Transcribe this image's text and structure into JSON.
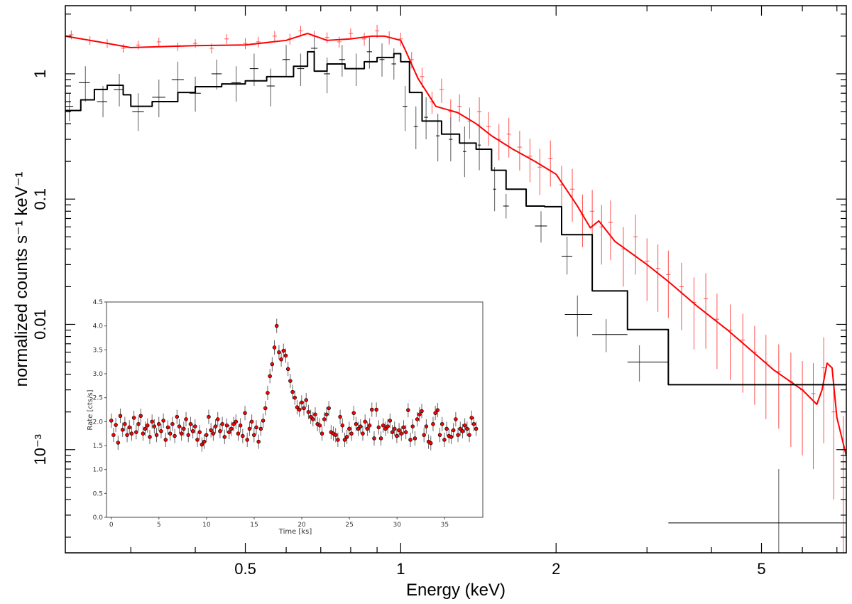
{
  "chart_data": [
    {
      "type": "line",
      "title": "",
      "xlabel": "Energy (keV)",
      "ylabel": "normalized counts s⁻¹ keV⁻¹",
      "xscale": "log",
      "yscale": "log",
      "xlim": [
        0.224,
        7.3
      ],
      "ylim": [
        0.00015,
        3.5
      ],
      "xticks": [
        {
          "v": 0.5,
          "label": "0.5"
        },
        {
          "v": 1,
          "label": "1"
        },
        {
          "v": 2,
          "label": "2"
        },
        {
          "v": 5,
          "label": "5"
        }
      ],
      "yticks": [
        {
          "v": 1,
          "label": "1"
        },
        {
          "v": 0.1,
          "label": "0.1"
        },
        {
          "v": 0.01,
          "label": "0.01"
        },
        {
          "v": 0.001,
          "label": "10⁻³"
        }
      ],
      "colors": {
        "red": "#ff0000",
        "black": "#000000",
        "black_err": "#777777",
        "red_err": "#ff5050"
      },
      "series": [
        {
          "name": "red model",
          "color": "red",
          "style": "smooth",
          "x": [
            0.224,
            0.26,
            0.3,
            0.4,
            0.5,
            0.6,
            0.66,
            0.72,
            0.8,
            0.88,
            0.93,
            1.0,
            1.02,
            1.08,
            1.17,
            1.29,
            1.4,
            1.5,
            1.65,
            1.82,
            2.0,
            2.2,
            2.33,
            2.42,
            2.6,
            3.0,
            3.3,
            3.75,
            4.3,
            5.29,
            6.0,
            6.4,
            6.55,
            6.7,
            6.85,
            7.0,
            7.3
          ],
          "y": [
            2.0,
            1.8,
            1.62,
            1.68,
            1.7,
            1.85,
            2.1,
            1.85,
            1.9,
            2.0,
            2.0,
            1.85,
            1.56,
            0.92,
            0.55,
            0.49,
            0.4,
            0.32,
            0.25,
            0.2,
            0.158,
            0.088,
            0.059,
            0.067,
            0.046,
            0.03,
            0.022,
            0.014,
            0.009,
            0.0043,
            0.003,
            0.0023,
            0.003,
            0.0049,
            0.0045,
            0.0018,
            0.00089
          ]
        },
        {
          "name": "black model",
          "color": "black",
          "style": "step",
          "x": [
            0.224,
            0.24,
            0.255,
            0.27,
            0.29,
            0.3,
            0.33,
            0.37,
            0.4,
            0.45,
            0.5,
            0.55,
            0.62,
            0.66,
            0.68,
            0.72,
            0.78,
            0.85,
            0.9,
            0.97,
            1.0,
            1.04,
            1.1,
            1.2,
            1.3,
            1.4,
            1.5,
            1.6,
            1.75,
            1.9,
            2.05,
            2.35,
            2.75,
            3.3,
            7.3
          ],
          "y": [
            0.51,
            0.62,
            0.75,
            0.81,
            0.68,
            0.55,
            0.6,
            0.71,
            0.79,
            0.83,
            0.88,
            0.95,
            1.15,
            1.5,
            1.05,
            1.2,
            1.1,
            1.25,
            1.35,
            1.45,
            1.25,
            0.71,
            0.42,
            0.33,
            0.28,
            0.25,
            0.17,
            0.12,
            0.088,
            0.087,
            0.052,
            0.0185,
            0.0091,
            0.0033,
            0.00031
          ]
        }
      ],
      "red_data": {
        "x": [
          0.23,
          0.25,
          0.27,
          0.29,
          0.31,
          0.34,
          0.37,
          0.4,
          0.43,
          0.46,
          0.5,
          0.53,
          0.57,
          0.61,
          0.64,
          0.68,
          0.72,
          0.76,
          0.8,
          0.85,
          0.9,
          0.95,
          1.0,
          1.05,
          1.1,
          1.15,
          1.2,
          1.25,
          1.3,
          1.36,
          1.42,
          1.48,
          1.55,
          1.62,
          1.7,
          1.78,
          1.86,
          1.95,
          2.05,
          2.15,
          2.25,
          2.35,
          2.45,
          2.55,
          2.7,
          2.85,
          3.0,
          3.15,
          3.3,
          3.5,
          3.7,
          3.9,
          4.1,
          4.35,
          4.6,
          4.85,
          5.1,
          5.4,
          5.7,
          6.0,
          6.3,
          6.6,
          6.9,
          7.2
        ],
        "y": [
          2.05,
          1.85,
          1.75,
          1.6,
          1.7,
          1.8,
          1.65,
          1.75,
          1.6,
          1.9,
          1.75,
          1.8,
          2.0,
          1.9,
          2.2,
          2.0,
          1.95,
          1.8,
          2.1,
          1.9,
          2.2,
          1.95,
          1.9,
          1.3,
          0.95,
          0.6,
          0.75,
          0.5,
          0.55,
          0.42,
          0.5,
          0.38,
          0.3,
          0.33,
          0.26,
          0.22,
          0.18,
          0.21,
          0.13,
          0.12,
          0.075,
          0.08,
          0.06,
          0.065,
          0.04,
          0.05,
          0.032,
          0.028,
          0.025,
          0.02,
          0.015,
          0.016,
          0.011,
          0.009,
          0.0075,
          0.006,
          0.005,
          0.0042,
          0.0035,
          0.003,
          0.0028,
          0.0045,
          0.002,
          0.001
        ],
        "yerr_frac": [
          0.08,
          0.08,
          0.08,
          0.08,
          0.08,
          0.08,
          0.08,
          0.08,
          0.09,
          0.09,
          0.1,
          0.1,
          0.1,
          0.1,
          0.1,
          0.1,
          0.1,
          0.1,
          0.1,
          0.12,
          0.12,
          0.12,
          0.12,
          0.15,
          0.18,
          0.2,
          0.22,
          0.25,
          0.25,
          0.28,
          0.3,
          0.3,
          0.32,
          0.35,
          0.35,
          0.38,
          0.4,
          0.4,
          0.42,
          0.45,
          0.45,
          0.48,
          0.5,
          0.5,
          0.5,
          0.5,
          0.52,
          0.55,
          0.55,
          0.55,
          0.58,
          0.6,
          0.6,
          0.6,
          0.62,
          0.62,
          0.65,
          0.65,
          0.7,
          0.7,
          0.75,
          0.75,
          0.8,
          0.85
        ]
      },
      "black_data": {
        "x": [
          0.228,
          0.245,
          0.265,
          0.285,
          0.31,
          0.34,
          0.37,
          0.4,
          0.44,
          0.48,
          0.52,
          0.56,
          0.6,
          0.64,
          0.68,
          0.72,
          0.77,
          0.82,
          0.87,
          0.92,
          0.97,
          1.02,
          1.07,
          1.12,
          1.18,
          1.25,
          1.33,
          1.42,
          1.52,
          1.6,
          1.87,
          2.1,
          2.2,
          2.5,
          2.9,
          5.4
        ],
        "y": [
          0.55,
          0.85,
          0.6,
          0.75,
          0.5,
          0.65,
          0.9,
          0.7,
          1.0,
          0.85,
          1.1,
          0.8,
          1.3,
          1.1,
          1.6,
          1.0,
          1.3,
          1.1,
          1.5,
          1.3,
          1.2,
          0.55,
          0.38,
          0.45,
          0.32,
          0.3,
          0.24,
          0.27,
          0.12,
          0.088,
          0.061,
          0.035,
          0.012,
          0.0083,
          0.005,
          0.00026
        ],
        "xlo": [
          0.224,
          0.238,
          0.258,
          0.278,
          0.302,
          0.33,
          0.36,
          0.39,
          0.43,
          0.47,
          0.51,
          0.55,
          0.59,
          0.63,
          0.67,
          0.71,
          0.76,
          0.81,
          0.86,
          0.91,
          0.96,
          1.01,
          1.06,
          1.11,
          1.17,
          1.24,
          1.32,
          1.41,
          1.51,
          1.58,
          1.82,
          2.05,
          2.08,
          2.35,
          2.75,
          3.3
        ],
        "xhi": [
          0.232,
          0.25,
          0.27,
          0.29,
          0.318,
          0.35,
          0.38,
          0.41,
          0.45,
          0.49,
          0.53,
          0.57,
          0.61,
          0.65,
          0.69,
          0.73,
          0.78,
          0.83,
          0.88,
          0.93,
          0.98,
          1.03,
          1.08,
          1.13,
          1.19,
          1.26,
          1.34,
          1.43,
          1.53,
          1.62,
          1.92,
          2.15,
          2.35,
          2.75,
          3.3,
          7.3
        ],
        "ylo": [
          0.42,
          0.6,
          0.45,
          0.55,
          0.35,
          0.45,
          0.65,
          0.5,
          0.75,
          0.6,
          0.8,
          0.55,
          0.95,
          0.8,
          1.2,
          0.7,
          0.95,
          0.8,
          1.1,
          0.95,
          0.9,
          0.35,
          0.25,
          0.3,
          0.2,
          0.2,
          0.15,
          0.17,
          0.08,
          0.07,
          0.045,
          0.025,
          0.008,
          0.006,
          0.0035,
          0.00015
        ],
        "yhi": [
          0.7,
          1.15,
          0.8,
          1.0,
          0.7,
          0.9,
          1.25,
          0.95,
          1.3,
          1.15,
          1.45,
          1.1,
          1.7,
          1.45,
          2.0,
          1.35,
          1.7,
          1.45,
          1.95,
          1.75,
          1.6,
          0.8,
          0.55,
          0.65,
          0.48,
          0.45,
          0.38,
          0.4,
          0.18,
          0.11,
          0.08,
          0.05,
          0.017,
          0.011,
          0.0068,
          0.0007
        ]
      }
    },
    {
      "type": "scatter",
      "title": "",
      "xlabel": "Time [ks]",
      "ylabel": "Rate [cts/s]",
      "xlim": [
        -0.5,
        39
      ],
      "ylim": [
        0,
        4.5
      ],
      "xticks": [
        0,
        5,
        10,
        15,
        20,
        25,
        30,
        35
      ],
      "yticks": [
        "0.0",
        "0.5",
        "1.0",
        "1.5",
        "2.0",
        "2.5",
        "3.0",
        "3.5",
        "4.0",
        "4.5"
      ],
      "marker_color": "#ff0000",
      "err": 0.15,
      "dt": 0.38,
      "rates": [
        2.02,
        1.72,
        1.93,
        1.56,
        2.12,
        1.83,
        1.95,
        1.72,
        1.88,
        1.75,
        2.08,
        1.78,
        1.95,
        2.12,
        1.75,
        1.85,
        1.92,
        1.68,
        2.0,
        1.9,
        1.72,
        1.95,
        1.8,
        2.02,
        1.62,
        1.88,
        1.75,
        1.95,
        1.7,
        2.1,
        1.9,
        1.75,
        1.85,
        2.05,
        1.72,
        1.95,
        1.8,
        1.9,
        1.62,
        1.78,
        1.52,
        1.58,
        1.72,
        2.1,
        1.82,
        1.75,
        1.9,
        2.05,
        1.8,
        1.95,
        1.68,
        1.92,
        1.78,
        1.85,
        1.95,
        2.0,
        1.75,
        1.92,
        1.7,
        2.18,
        1.62,
        1.85,
        2.0,
        1.72,
        1.88,
        1.58,
        1.85,
        2.02,
        2.28,
        2.6,
        2.95,
        3.2,
        3.55,
        4.0,
        3.45,
        3.3,
        3.48,
        3.38,
        3.1,
        2.85,
        2.62,
        2.5,
        2.3,
        2.25,
        2.4,
        2.28,
        2.45,
        2.2,
        2.1,
        2.05,
        2.15,
        1.95,
        1.92,
        1.75,
        2.05,
        2.15,
        2.28,
        1.78,
        1.75,
        1.72,
        1.62,
        2.1,
        1.92,
        1.62,
        1.68,
        1.85,
        1.75,
        2.18,
        1.95,
        1.85,
        1.9,
        1.75,
        2.0,
        1.85,
        1.92,
        2.25,
        1.65,
        2.25,
        1.88,
        1.65,
        1.92,
        1.85,
        1.9,
        2.02,
        1.78,
        1.85,
        1.7,
        1.82,
        1.75,
        1.88,
        1.78,
        2.24,
        1.62,
        1.9,
        1.65,
        2.05,
        2.15,
        2.22,
        1.72,
        1.9,
        1.58,
        1.55,
        1.95,
        2.18,
        2.24,
        1.72,
        1.95,
        1.62,
        1.85,
        1.7,
        1.68,
        1.82,
        2.05,
        1.72,
        1.85,
        1.8,
        1.92,
        1.85,
        1.72,
        2.08,
        1.95,
        1.85
      ]
    }
  ]
}
